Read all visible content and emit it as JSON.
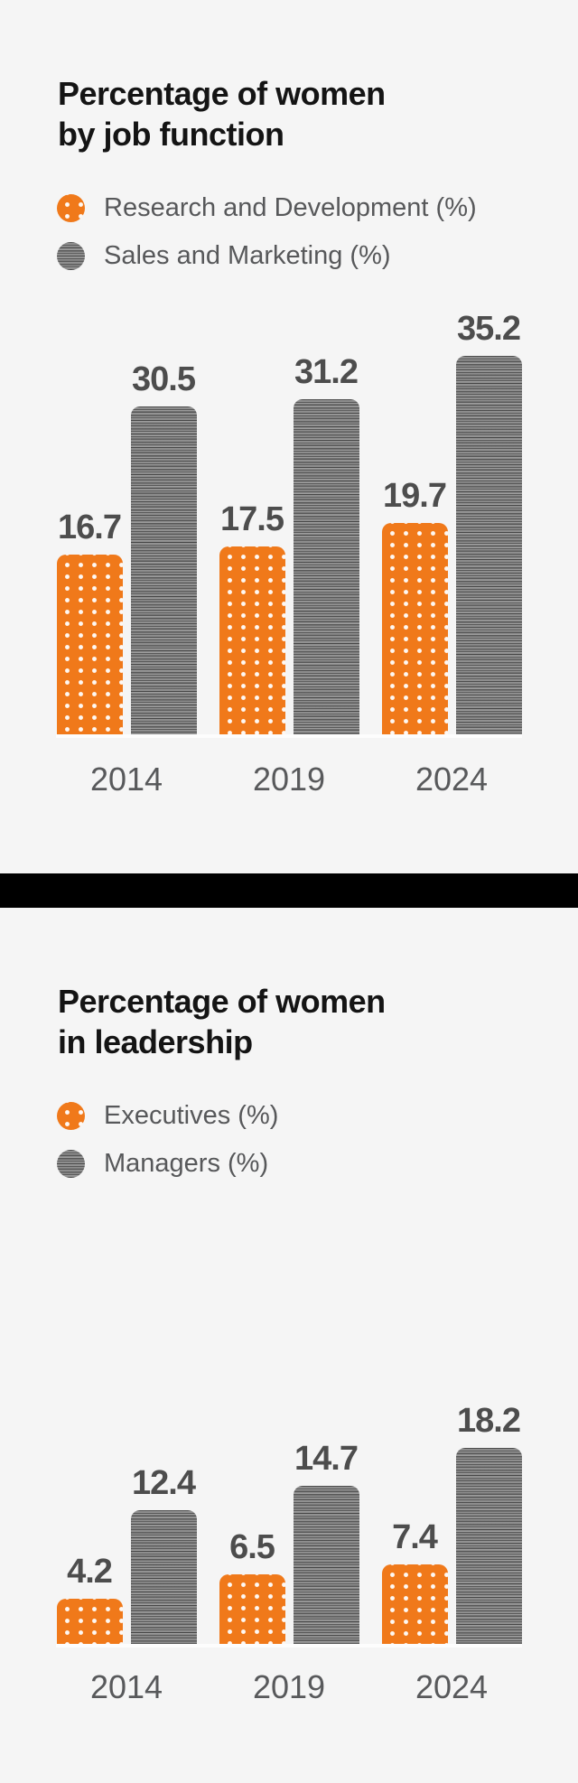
{
  "theme": {
    "background": "#f5f5f5",
    "orange": "#f0791a",
    "gray": "#8e8e8e",
    "title_color": "#141414",
    "legend_text_color": "#57585a",
    "value_label_color": "#4d4d4d",
    "category_label_color": "#58595b",
    "divider_color": "#000000",
    "baseline_color": "#fdfdfd"
  },
  "chart_data": [
    {
      "type": "bar",
      "title": "Percentage of women by job function",
      "title_lines": [
        "Percentage of women",
        "by job function"
      ],
      "categories": [
        "2014",
        "2019",
        "2024"
      ],
      "series": [
        {
          "name": "Research and Development (%)",
          "style": "orange",
          "values": [
            16.7,
            17.5,
            19.7
          ]
        },
        {
          "name": "Sales and Marketing (%)",
          "style": "gray",
          "values": [
            30.5,
            31.2,
            35.2
          ]
        }
      ],
      "value_labels": [
        "16.7",
        "30.5",
        "17.5",
        "31.2",
        "19.7",
        "35.2"
      ],
      "ylim": [
        0,
        38
      ],
      "grid": false,
      "legend_position": "top-left",
      "bar_patterns": {
        "orange": "white-dots",
        "gray": "horizontal-stripes"
      }
    },
    {
      "type": "bar",
      "title": "Percentage of women in leadership",
      "title_lines": [
        "Percentage of women",
        "in leadership"
      ],
      "categories": [
        "2014",
        "2019",
        "2024"
      ],
      "series": [
        {
          "name": "Executives (%)",
          "style": "orange",
          "values": [
            4.2,
            6.5,
            7.4
          ]
        },
        {
          "name": "Managers (%)",
          "style": "gray",
          "values": [
            12.4,
            14.7,
            18.2
          ]
        }
      ],
      "value_labels": [
        "4.2",
        "12.4",
        "6.5",
        "14.7",
        "7.4",
        "18.2"
      ],
      "ylim": [
        0,
        38
      ],
      "grid": false,
      "legend_position": "top-left",
      "bar_patterns": {
        "orange": "white-dots",
        "gray": "horizontal-stripes"
      }
    }
  ]
}
